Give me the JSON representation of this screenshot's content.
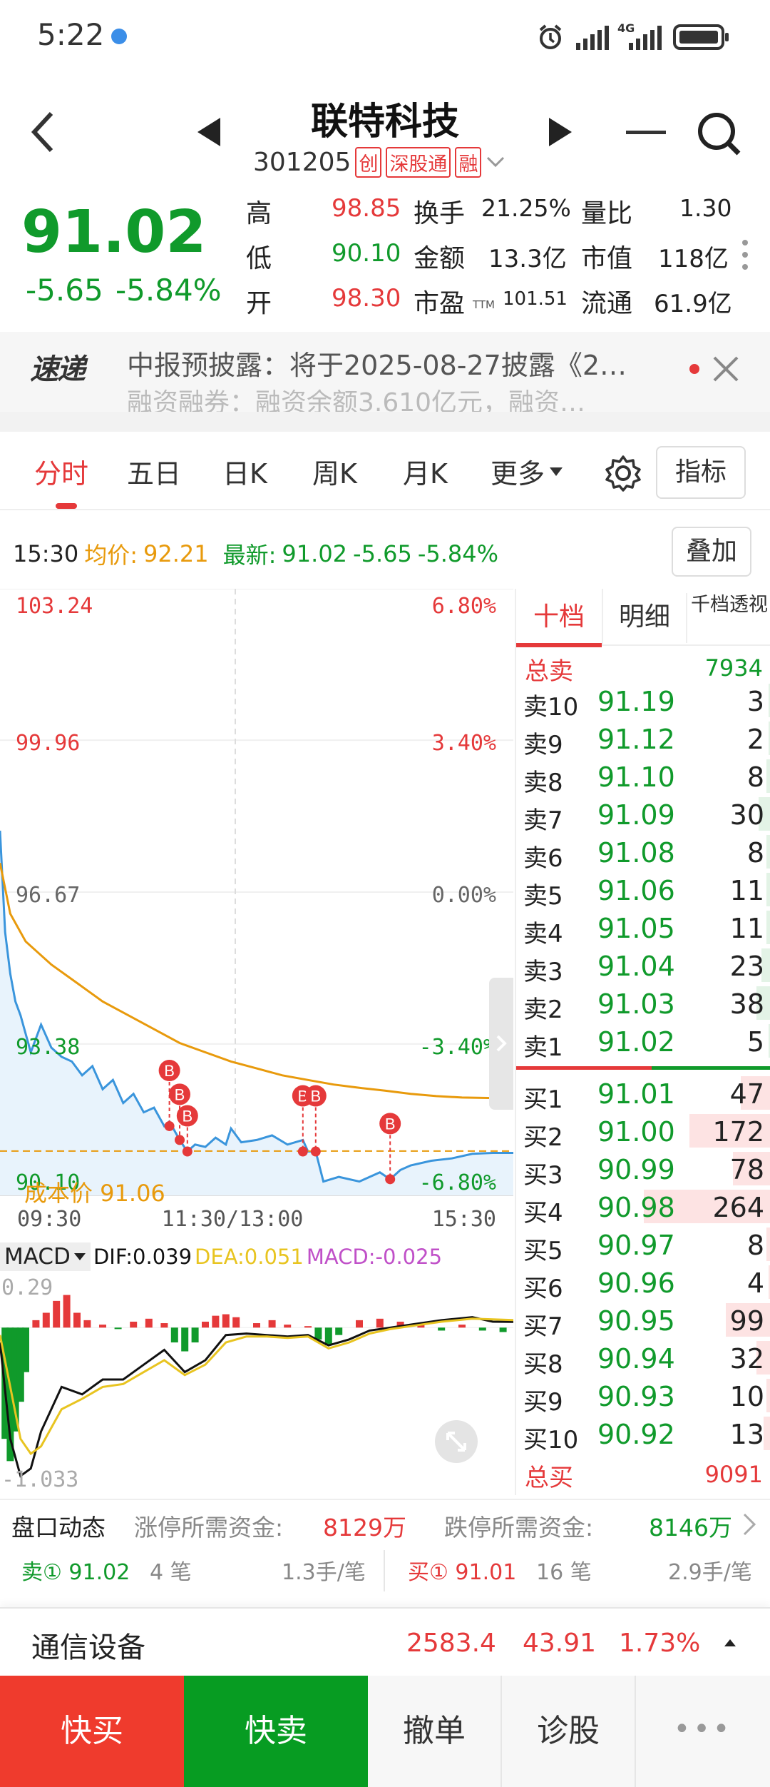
{
  "status_bar": {
    "time": "5:22",
    "network": "4G",
    "net_sub": "1ₗₗ"
  },
  "header": {
    "stock_name": "联特科技",
    "stock_code": "301205",
    "badges": [
      "创",
      "深股通",
      "融"
    ]
  },
  "quote": {
    "price": "91.02",
    "change": "-5.65",
    "change_pct": "-5.84%",
    "rows": [
      [
        {
          "label": "高",
          "value": "98.85",
          "color": "red"
        },
        {
          "label": "换手",
          "value": "21.25%"
        },
        {
          "label": "量比",
          "value": "1.30"
        }
      ],
      [
        {
          "label": "低",
          "value": "90.10",
          "color": "green"
        },
        {
          "label": "金额",
          "value": "13.3亿"
        },
        {
          "label": "市值",
          "value": "118亿"
        }
      ],
      [
        {
          "label": "开",
          "value": "98.30",
          "color": "red"
        },
        {
          "label": "市盈",
          "sub": "TTM",
          "value": "101.51"
        },
        {
          "label": "流通",
          "value": "61.9亿"
        }
      ]
    ]
  },
  "news": {
    "brand": "速递",
    "line1": "中报预披露：将于2025-08-27披露《2…",
    "line2": "融资融券：融资余额3.610亿元，融资…"
  },
  "tabs": [
    {
      "label": "分时",
      "active": true
    },
    {
      "label": "五日"
    },
    {
      "label": "日K"
    },
    {
      "label": "周K"
    },
    {
      "label": "月K"
    },
    {
      "label": "更多"
    }
  ],
  "indicator_button": "指标",
  "info_line": {
    "time": "15:30",
    "avg_label": "均价:",
    "avg_value": "92.21",
    "latest_label": "最新:",
    "latest_value": "91.02",
    "latest_change": "-5.65",
    "latest_pct": "-5.84%",
    "overlay_button": "叠加"
  },
  "chart_data": [
    {
      "type": "line",
      "title": "",
      "y_ticks_left": [
        "103.24",
        "99.96",
        "96.67",
        "93.38",
        "90.10"
      ],
      "y_ticks_right": [
        "6.80%",
        "3.40%",
        "0.00%",
        "-3.40%",
        "-6.80%"
      ],
      "x_ticks": [
        "09:30",
        "11:30/13:00",
        "15:30"
      ],
      "ylim": [
        90.1,
        103.24
      ],
      "prev_close": 96.67,
      "cost_label": "成本价 91.06",
      "cost_value": 91.06,
      "buy_marker": "B",
      "buy_markers": [
        {
          "t": 0.33,
          "price": 91.6
        },
        {
          "t": 0.35,
          "price": 91.3
        },
        {
          "t": 0.365,
          "price": 91.05
        },
        {
          "t": 0.59,
          "price": 91.05
        },
        {
          "t": 0.615,
          "price": 91.05
        },
        {
          "t": 0.76,
          "price": 90.45
        }
      ],
      "series": [
        {
          "name": "均价",
          "color": "#e89a0c",
          "t": [
            0,
            0.02,
            0.05,
            0.1,
            0.15,
            0.2,
            0.25,
            0.3,
            0.35,
            0.4,
            0.45,
            0.5,
            0.55,
            0.6,
            0.65,
            0.7,
            0.75,
            0.8,
            0.85,
            0.9,
            0.95,
            1.0
          ],
          "values": [
            97.3,
            96.2,
            95.6,
            95.1,
            94.7,
            94.3,
            94.0,
            93.7,
            93.4,
            93.2,
            93.0,
            92.85,
            92.7,
            92.6,
            92.5,
            92.43,
            92.37,
            92.3,
            92.25,
            92.22,
            92.21,
            92.21
          ]
        },
        {
          "name": "最新",
          "color": "#3a95dc",
          "t": [
            0,
            0.01,
            0.02,
            0.03,
            0.04,
            0.06,
            0.08,
            0.1,
            0.12,
            0.14,
            0.16,
            0.18,
            0.2,
            0.22,
            0.24,
            0.26,
            0.28,
            0.3,
            0.32,
            0.33,
            0.35,
            0.365,
            0.38,
            0.4,
            0.42,
            0.44,
            0.45,
            0.47,
            0.5,
            0.53,
            0.56,
            0.59,
            0.6,
            0.615,
            0.63,
            0.66,
            0.7,
            0.74,
            0.76,
            0.78,
            0.8,
            0.84,
            0.88,
            0.92,
            0.96,
            1.0
          ],
          "values": [
            98.0,
            95.8,
            94.9,
            94.3,
            94.0,
            93.2,
            93.8,
            93.3,
            93.1,
            93.0,
            92.7,
            92.9,
            92.4,
            92.6,
            92.1,
            92.3,
            91.9,
            92.0,
            91.6,
            91.7,
            91.3,
            91.05,
            91.2,
            91.15,
            91.35,
            91.2,
            91.55,
            91.25,
            91.3,
            91.4,
            91.2,
            91.3,
            91.05,
            91.05,
            90.4,
            90.5,
            90.4,
            90.6,
            90.45,
            90.65,
            90.75,
            90.85,
            90.9,
            91.0,
            91.02,
            91.02
          ]
        }
      ]
    },
    {
      "type": "bar",
      "title": "MACD",
      "dif_label": "DIF:0.039",
      "dea_label": "DEA:0.051",
      "macd_label": "MACD:-0.025",
      "y_ticks": [
        "0.29",
        "-1.033"
      ],
      "ylim": [
        -1.033,
        0.29
      ],
      "bars": [
        {
          "t": 0.01,
          "v": -0.75
        },
        {
          "t": 0.02,
          "v": -0.9
        },
        {
          "t": 0.03,
          "v": -0.7
        },
        {
          "t": 0.04,
          "v": -0.5
        },
        {
          "t": 0.05,
          "v": -0.3
        },
        {
          "t": 0.07,
          "v": 0.05
        },
        {
          "t": 0.09,
          "v": 0.1
        },
        {
          "t": 0.11,
          "v": 0.18
        },
        {
          "t": 0.13,
          "v": 0.22
        },
        {
          "t": 0.15,
          "v": 0.1
        },
        {
          "t": 0.17,
          "v": 0.05
        },
        {
          "t": 0.2,
          "v": 0.02
        },
        {
          "t": 0.23,
          "v": -0.01
        },
        {
          "t": 0.26,
          "v": 0.04
        },
        {
          "t": 0.29,
          "v": 0.06
        },
        {
          "t": 0.32,
          "v": 0.03
        },
        {
          "t": 0.34,
          "v": -0.1
        },
        {
          "t": 0.36,
          "v": -0.16
        },
        {
          "t": 0.38,
          "v": -0.1
        },
        {
          "t": 0.4,
          "v": 0.04
        },
        {
          "t": 0.42,
          "v": 0.08
        },
        {
          "t": 0.44,
          "v": 0.09
        },
        {
          "t": 0.46,
          "v": 0.07
        },
        {
          "t": 0.5,
          "v": 0.03
        },
        {
          "t": 0.53,
          "v": 0.05
        },
        {
          "t": 0.56,
          "v": 0.02
        },
        {
          "t": 0.6,
          "v": 0.01
        },
        {
          "t": 0.62,
          "v": -0.08
        },
        {
          "t": 0.64,
          "v": -0.12
        },
        {
          "t": 0.66,
          "v": -0.05
        },
        {
          "t": 0.7,
          "v": 0.05
        },
        {
          "t": 0.74,
          "v": 0.06
        },
        {
          "t": 0.78,
          "v": 0.04
        },
        {
          "t": 0.82,
          "v": 0.03
        },
        {
          "t": 0.86,
          "v": -0.02
        },
        {
          "t": 0.9,
          "v": 0.02
        },
        {
          "t": 0.94,
          "v": -0.02
        },
        {
          "t": 0.98,
          "v": -0.03
        }
      ],
      "series": [
        {
          "name": "DIF",
          "color": "#111111",
          "t": [
            0,
            0.02,
            0.04,
            0.06,
            0.08,
            0.12,
            0.16,
            0.2,
            0.24,
            0.28,
            0.32,
            0.36,
            0.4,
            0.44,
            0.48,
            0.52,
            0.56,
            0.6,
            0.64,
            0.68,
            0.72,
            0.76,
            0.8,
            0.86,
            0.92,
            0.96,
            1.0
          ],
          "values": [
            -0.1,
            -0.75,
            -1.0,
            -0.95,
            -0.7,
            -0.4,
            -0.45,
            -0.35,
            -0.35,
            -0.25,
            -0.15,
            -0.3,
            -0.22,
            -0.05,
            -0.04,
            -0.05,
            -0.06,
            -0.05,
            -0.12,
            -0.08,
            -0.02,
            0.0,
            0.02,
            0.05,
            0.07,
            0.04,
            0.039
          ]
        },
        {
          "name": "DEA",
          "color": "#e8c420",
          "t": [
            0,
            0.02,
            0.04,
            0.06,
            0.08,
            0.12,
            0.16,
            0.2,
            0.24,
            0.28,
            0.32,
            0.36,
            0.4,
            0.44,
            0.48,
            0.52,
            0.56,
            0.6,
            0.64,
            0.68,
            0.72,
            0.76,
            0.8,
            0.86,
            0.92,
            0.96,
            1.0
          ],
          "values": [
            -0.05,
            -0.4,
            -0.75,
            -0.85,
            -0.8,
            -0.55,
            -0.48,
            -0.4,
            -0.38,
            -0.3,
            -0.22,
            -0.32,
            -0.25,
            -0.1,
            -0.06,
            -0.06,
            -0.07,
            -0.06,
            -0.14,
            -0.1,
            -0.04,
            -0.01,
            0.01,
            0.04,
            0.06,
            0.055,
            0.051
          ]
        }
      ]
    }
  ],
  "order_book": {
    "tabs": [
      {
        "label": "十档",
        "active": true
      },
      {
        "label": "明细"
      },
      {
        "label": "千档透视"
      }
    ],
    "total_sell_label": "总卖",
    "total_sell": "7934",
    "asks": [
      {
        "label": "卖10",
        "price": "91.19",
        "vol": "3",
        "ratio": 0.01
      },
      {
        "label": "卖9",
        "price": "91.12",
        "vol": "2",
        "ratio": 0.01
      },
      {
        "label": "卖8",
        "price": "91.10",
        "vol": "8",
        "ratio": 0.02
      },
      {
        "label": "卖7",
        "price": "91.09",
        "vol": "30",
        "ratio": 0.05
      },
      {
        "label": "卖6",
        "price": "91.08",
        "vol": "8",
        "ratio": 0.02
      },
      {
        "label": "卖5",
        "price": "91.06",
        "vol": "11",
        "ratio": 0.02
      },
      {
        "label": "卖4",
        "price": "91.05",
        "vol": "11",
        "ratio": 0.02
      },
      {
        "label": "卖3",
        "price": "91.04",
        "vol": "23",
        "ratio": 0.04
      },
      {
        "label": "卖2",
        "price": "91.03",
        "vol": "38",
        "ratio": 0.06
      },
      {
        "label": "卖1",
        "price": "91.02",
        "vol": "5",
        "ratio": 0.01
      }
    ],
    "bids": [
      {
        "label": "买1",
        "price": "91.01",
        "vol": "47",
        "ratio": 0.12
      },
      {
        "label": "买2",
        "price": "91.00",
        "vol": "172",
        "ratio": 0.32
      },
      {
        "label": "买3",
        "price": "90.99",
        "vol": "78",
        "ratio": 0.15
      },
      {
        "label": "买4",
        "price": "90.98",
        "vol": "264",
        "ratio": 0.5
      },
      {
        "label": "买5",
        "price": "90.97",
        "vol": "8",
        "ratio": 0.02
      },
      {
        "label": "买6",
        "price": "90.96",
        "vol": "4",
        "ratio": 0.01
      },
      {
        "label": "买7",
        "price": "90.95",
        "vol": "99",
        "ratio": 0.18
      },
      {
        "label": "买8",
        "price": "90.94",
        "vol": "32",
        "ratio": 0.06
      },
      {
        "label": "买9",
        "price": "90.93",
        "vol": "10",
        "ratio": 0.02
      },
      {
        "label": "买10",
        "price": "90.92",
        "vol": "13",
        "ratio": 0.03
      }
    ],
    "total_buy_label": "总买",
    "total_buy": "9091"
  },
  "panel": {
    "title": "盘口动态",
    "limit_up_label": "涨停所需资金:",
    "limit_up_value": "8129万",
    "limit_down_label": "跌停所需资金:",
    "limit_down_value": "8146万",
    "sell_label": "卖① 91.02",
    "sell_count": "4 笔",
    "sell_avg": "1.3手/笔",
    "buy_label": "买① 91.01",
    "buy_count": "16 笔",
    "buy_avg": "2.9手/笔"
  },
  "sector": {
    "name": "通信设备",
    "price": "2583.4",
    "change": "43.91",
    "pct": "1.73%"
  },
  "bottom_bar": {
    "quick_buy": "快买",
    "quick_sell": "快卖",
    "cancel": "撤单",
    "diagnose": "诊股",
    "more": "•••"
  },
  "colors": {
    "up": "#e5393a",
    "down": "#109a2b",
    "avg_line": "#e89a0c",
    "price_line": "#3a95dc",
    "buy_btn": "#ef3b2d",
    "sell_btn": "#079c22"
  }
}
